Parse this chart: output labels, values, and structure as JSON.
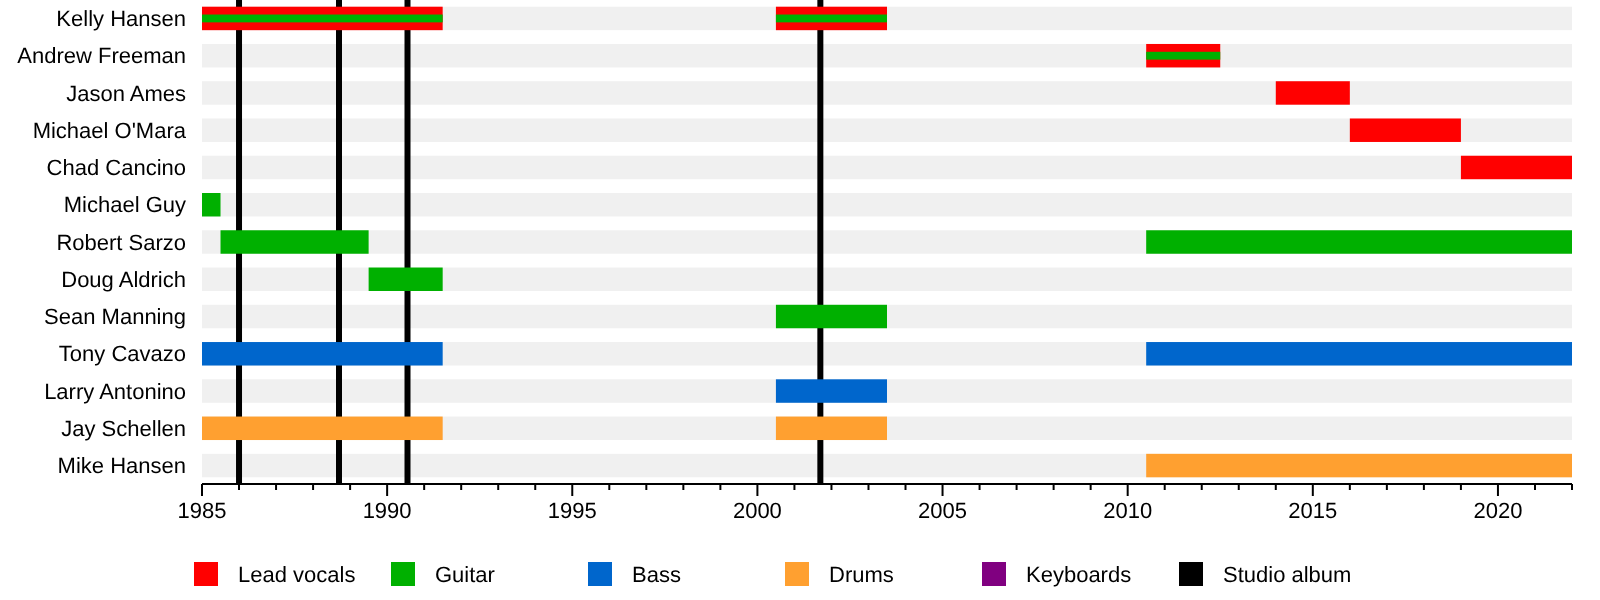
{
  "chart_data": {
    "type": "bar",
    "orientation": "horizontal",
    "categories": [
      "Kelly Hansen",
      "Andrew Freeman",
      "Jason Ames",
      "Michael O'Mara",
      "Chad Cancino",
      "Michael Guy",
      "Robert Sarzo",
      "Doug Aldrich",
      "Sean Manning",
      "Tony Cavazo",
      "Larry Antonino",
      "Jay Schellen",
      "Mike Hansen"
    ],
    "series": [
      {
        "name": "Lead vocals",
        "color": "#ff0000",
        "base": [
          1985,
          2010.5,
          2014,
          2016,
          2019,
          null,
          null,
          null,
          null,
          null,
          null,
          null,
          null
        ],
        "values": [
          6.5,
          2,
          2,
          3,
          3,
          null,
          null,
          null,
          null,
          null,
          null,
          null,
          null
        ]
      },
      {
        "color": "#ff0000",
        "base": [
          2000.5,
          null,
          null,
          null,
          null,
          null,
          null,
          null,
          null,
          null,
          null,
          null,
          null
        ],
        "values": [
          3,
          null,
          null,
          null,
          null,
          null,
          null,
          null,
          null,
          null,
          null,
          null,
          null
        ]
      },
      {
        "name": "Guitar",
        "color": "#00b000",
        "base": [
          1985,
          2010.5,
          null,
          null,
          null,
          1985,
          1985.5,
          1989.5,
          2000.5,
          null,
          null,
          null,
          null
        ],
        "values": [
          6.5,
          2,
          null,
          null,
          null,
          0.5,
          4,
          2,
          3,
          null,
          null,
          null,
          null
        ]
      },
      {
        "color": "#00b000",
        "base": [
          2000.5,
          null,
          null,
          null,
          null,
          null,
          2010.5,
          null,
          null,
          null,
          null,
          null,
          null
        ],
        "values": [
          3,
          null,
          null,
          null,
          null,
          null,
          11.5,
          null,
          null,
          null,
          null,
          null,
          null
        ]
      },
      {
        "name": "Bass",
        "color": "#0066cc",
        "base": [
          null,
          null,
          null,
          null,
          null,
          null,
          null,
          null,
          null,
          1985,
          2000.5,
          null,
          null
        ],
        "values": [
          null,
          null,
          null,
          null,
          null,
          null,
          null,
          null,
          null,
          6.5,
          3,
          null,
          null
        ]
      },
      {
        "color": "#0066cc",
        "base": [
          null,
          null,
          null,
          null,
          null,
          null,
          null,
          null,
          null,
          2010.5,
          null,
          null,
          null
        ],
        "values": [
          null,
          null,
          null,
          null,
          null,
          null,
          null,
          null,
          null,
          11.5,
          null,
          null,
          null
        ]
      },
      {
        "name": "Drums",
        "color": "#ffa030",
        "base": [
          null,
          null,
          null,
          null,
          null,
          null,
          null,
          null,
          null,
          null,
          null,
          1985,
          2010.5
        ],
        "values": [
          null,
          null,
          null,
          null,
          null,
          null,
          null,
          null,
          null,
          null,
          null,
          6.5,
          11.5
        ]
      },
      {
        "color": "#ffa030",
        "base": [
          null,
          null,
          null,
          null,
          null,
          null,
          null,
          null,
          null,
          null,
          null,
          2000.5,
          null
        ],
        "values": [
          null,
          null,
          null,
          null,
          null,
          null,
          null,
          null,
          null,
          null,
          null,
          3,
          null
        ]
      },
      {
        "name": "Keyboards",
        "color": "#800080",
        "values": [
          null,
          null,
          null,
          null,
          null,
          null,
          null,
          null,
          null,
          null,
          null,
          null,
          null
        ]
      }
    ],
    "xlim": [
      1985,
      2022
    ],
    "xticks": [
      1985,
      {
        "value": 1986,
        "label": null
      },
      {
        "value": 1987,
        "label": null
      },
      {
        "value": 1988,
        "label": null
      },
      {
        "value": 1989,
        "label": null
      },
      1990,
      {
        "value": 1991,
        "label": null
      },
      {
        "value": 1992,
        "label": null
      },
      {
        "value": 1993,
        "label": null
      },
      {
        "value": 1994,
        "label": null
      },
      1995,
      {
        "value": 1996,
        "label": null
      },
      {
        "value": 1997,
        "label": null
      },
      {
        "value": 1998,
        "label": null
      },
      {
        "value": 1999,
        "label": null
      },
      2000,
      {
        "value": 2001,
        "label": null
      },
      {
        "value": 2002,
        "label": null
      },
      {
        "value": 2003,
        "label": null
      },
      {
        "value": 2004,
        "label": null
      },
      2005,
      {
        "value": 2006,
        "label": null
      },
      {
        "value": 2007,
        "label": null
      },
      {
        "value": 2008,
        "label": null
      },
      {
        "value": 2009,
        "label": null
      },
      2010,
      {
        "value": 2011,
        "label": null
      },
      {
        "value": 2012,
        "label": null
      },
      {
        "value": 2013,
        "label": null
      },
      {
        "value": 2014,
        "label": null
      },
      2015,
      {
        "value": 2016,
        "label": null
      },
      {
        "value": 2017,
        "label": null
      },
      {
        "value": 2018,
        "label": null
      },
      {
        "value": 2019,
        "label": null
      },
      2020,
      {
        "value": 2021,
        "label": null
      },
      {
        "value": 2022,
        "label": null
      }
    ],
    "ref_lines": [
      {
        "axis": "x",
        "value": 1986,
        "color": "#000000"
      },
      {
        "axis": "x",
        "value": 1988.7,
        "color": "#000000"
      },
      {
        "axis": "x",
        "value": 1990.55,
        "color": "#000000"
      },
      {
        "axis": "x",
        "value": 2001.7,
        "color": "#000000"
      }
    ],
    "annotations": [
      "Studio album"
    ],
    "legend": "bottom",
    "grid": false
  }
}
